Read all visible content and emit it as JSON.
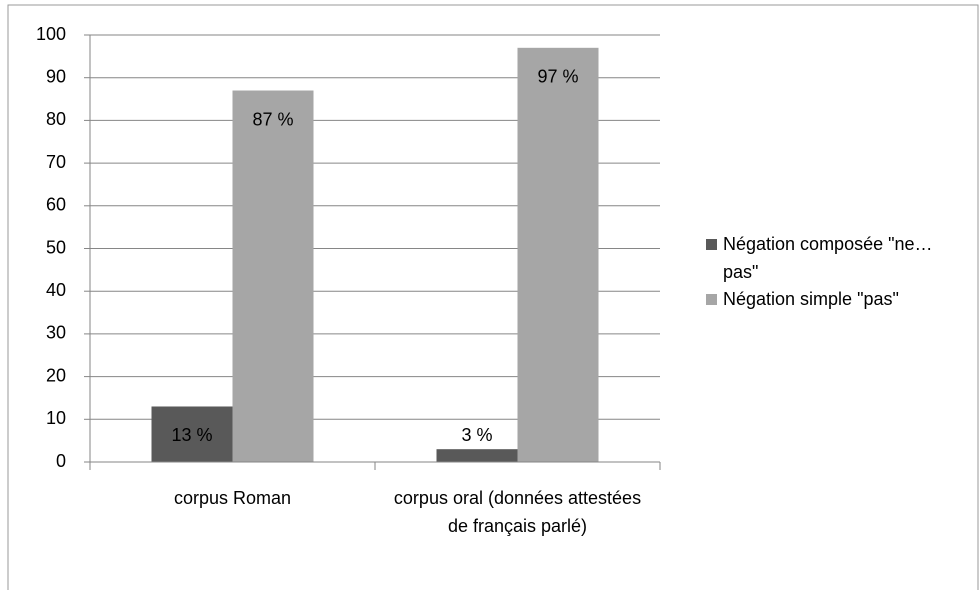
{
  "chart_data": {
    "type": "bar",
    "categories": [
      "corpus Roman",
      "corpus oral (données attestées de français parlé)"
    ],
    "series": [
      {
        "name": "Négation composée \"ne…pas\"",
        "color": "#595959",
        "values": [
          13,
          3
        ],
        "value_labels": [
          "13 %",
          "3 %"
        ]
      },
      {
        "name": "Négation simple \"pas\"",
        "color": "#a6a6a6",
        "values": [
          87,
          97
        ],
        "value_labels": [
          "87 %",
          "97 %"
        ]
      }
    ],
    "ylim": [
      0,
      100
    ],
    "yticks": [
      0,
      10,
      20,
      30,
      40,
      50,
      60,
      70,
      80,
      90,
      100
    ],
    "grid": true,
    "legend": "right"
  }
}
